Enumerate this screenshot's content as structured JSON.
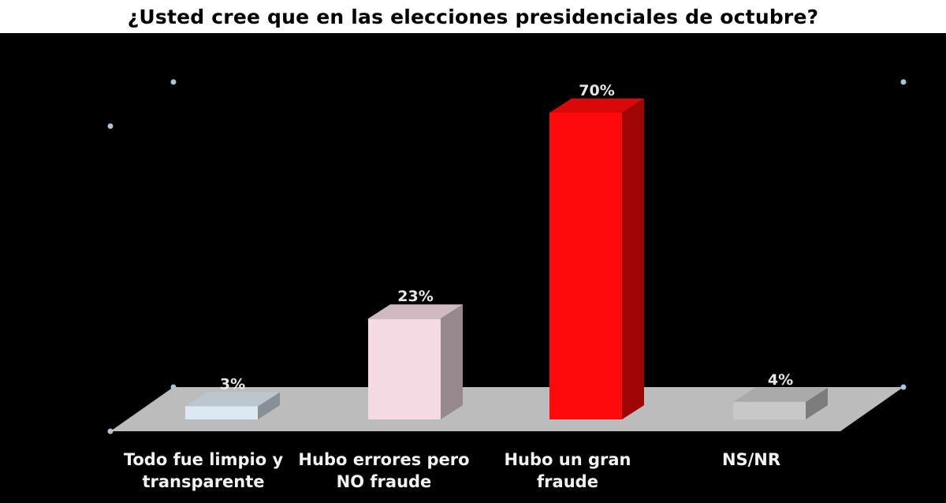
{
  "chart_data": {
    "type": "bar",
    "title": "¿Usted cree que en las elecciones presidenciales de octubre?",
    "categories": [
      "Todo fue limpio y\ntransparente",
      "Hubo errores pero\nNO fraude",
      "Hubo un gran\nfraude",
      "NS/NR"
    ],
    "values": [
      3,
      23,
      70,
      4
    ],
    "value_labels": [
      "3%",
      "23%",
      "70%",
      "4%"
    ],
    "value_unit": "%",
    "ylim": [
      0,
      70
    ],
    "bar_colors": [
      "#dce9f3",
      "#f4dbe3",
      "#ff0a0a",
      "#c8c8c8"
    ],
    "grid": false,
    "legend": "none",
    "background": "#000000",
    "floor_color": "#bcbcbc"
  }
}
